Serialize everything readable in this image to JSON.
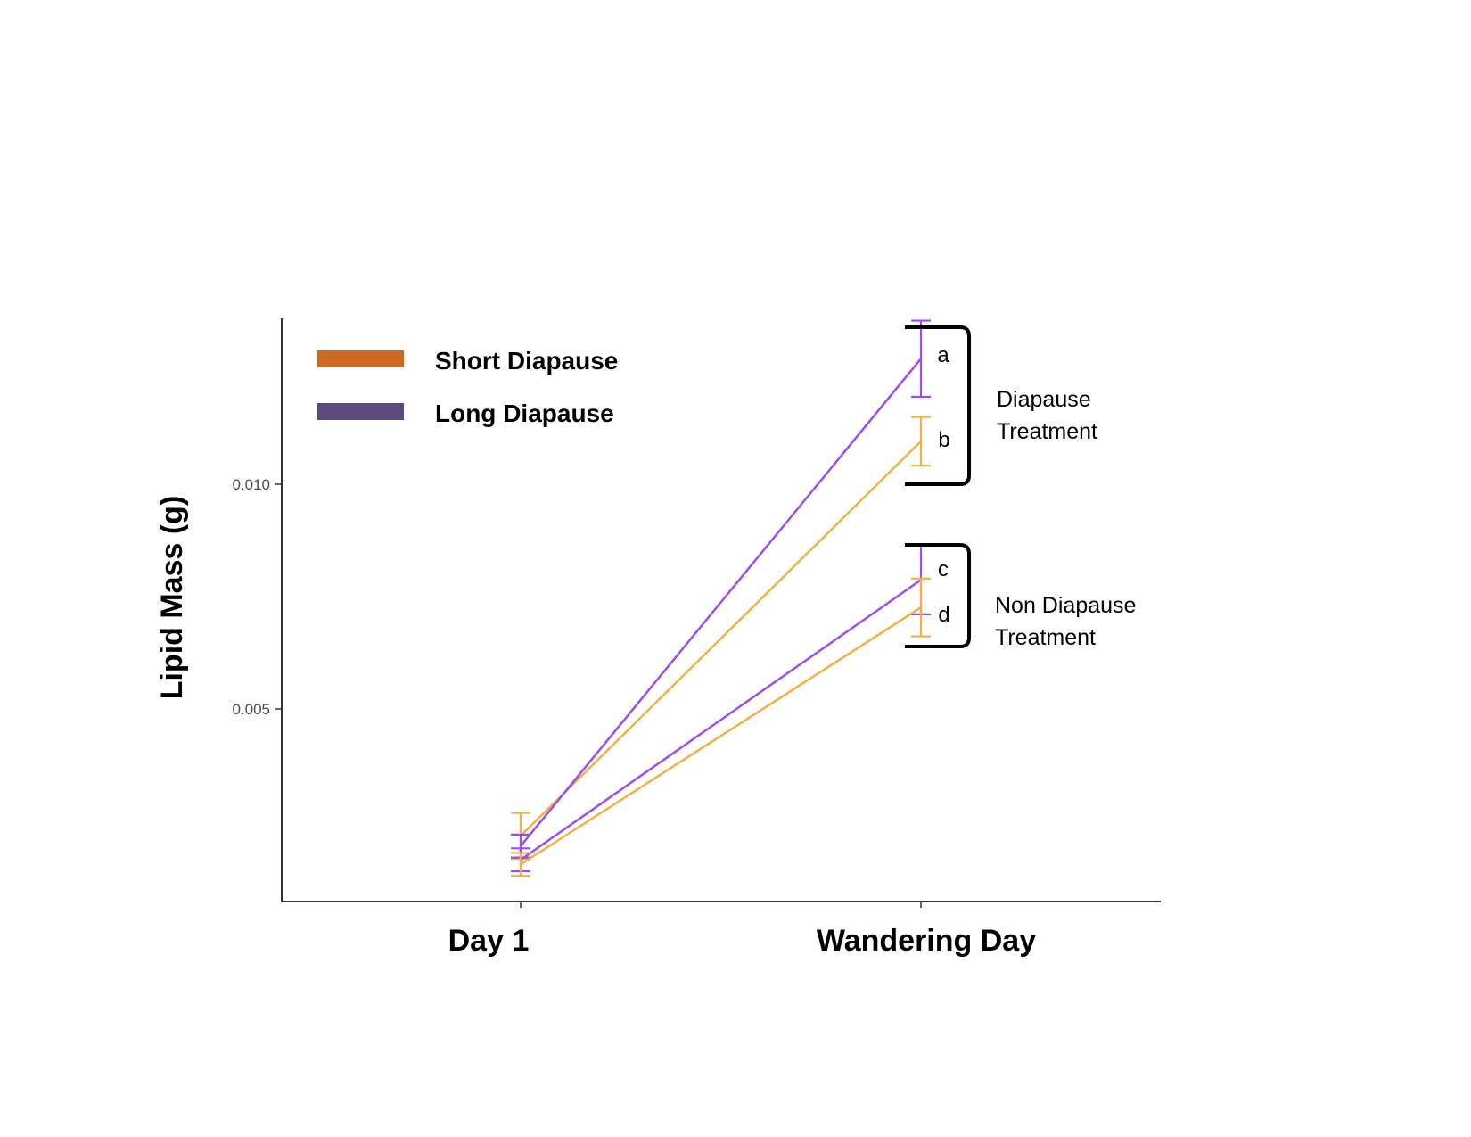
{
  "chart_data": {
    "type": "line",
    "categories": [
      "Day 1",
      "Wandering Day"
    ],
    "ylabel": "Lipid Mass (g)",
    "xlabel": "",
    "ylim": [
      0.00077,
      0.01348
    ],
    "yticks": [
      0.005,
      0.01
    ],
    "ytick_labels": [
      "0.005",
      "0.010"
    ],
    "grid": false,
    "legend": {
      "position": "top-left",
      "entries": [
        {
          "label": "Short Diapause",
          "color": "#cc6a24"
        },
        {
          "label": "Long Diapause",
          "color": "#5b4a7d"
        }
      ]
    },
    "series": [
      {
        "group": "Short Diapause",
        "treatment": "Diapause Treatment",
        "color": "#f5b042",
        "values": [
          0.0022,
          0.0108
        ],
        "errors": [
          0.0005,
          0.00053
        ]
      },
      {
        "group": "Long Diapause",
        "treatment": "Diapause Treatment",
        "color": "#9a4ef0",
        "values": [
          0.00198,
          0.0126
        ],
        "errors": [
          0.00025,
          0.00083
        ]
      },
      {
        "group": "Long Diapause",
        "treatment": "Non Diapause Treatment",
        "color": "#9a4ef0",
        "values": [
          0.00168,
          0.00778
        ],
        "errors": [
          0.00025,
          0.00075
        ]
      },
      {
        "group": "Short Diapause",
        "treatment": "Non Diapause Treatment",
        "color": "#f5b042",
        "values": [
          0.00158,
          0.00718
        ],
        "errors": [
          0.00025,
          0.00063
        ]
      }
    ],
    "annotations": {
      "letters": [
        {
          "text": "a",
          "series_index": 1
        },
        {
          "text": "b",
          "series_index": 0
        },
        {
          "text": "c",
          "series_index": 2
        },
        {
          "text": "d",
          "series_index": 3
        }
      ],
      "groups": [
        {
          "lines": [
            "Diapause",
            "Treatment"
          ]
        },
        {
          "lines": [
            "Non Diapause",
            "Treatment"
          ]
        }
      ]
    }
  }
}
